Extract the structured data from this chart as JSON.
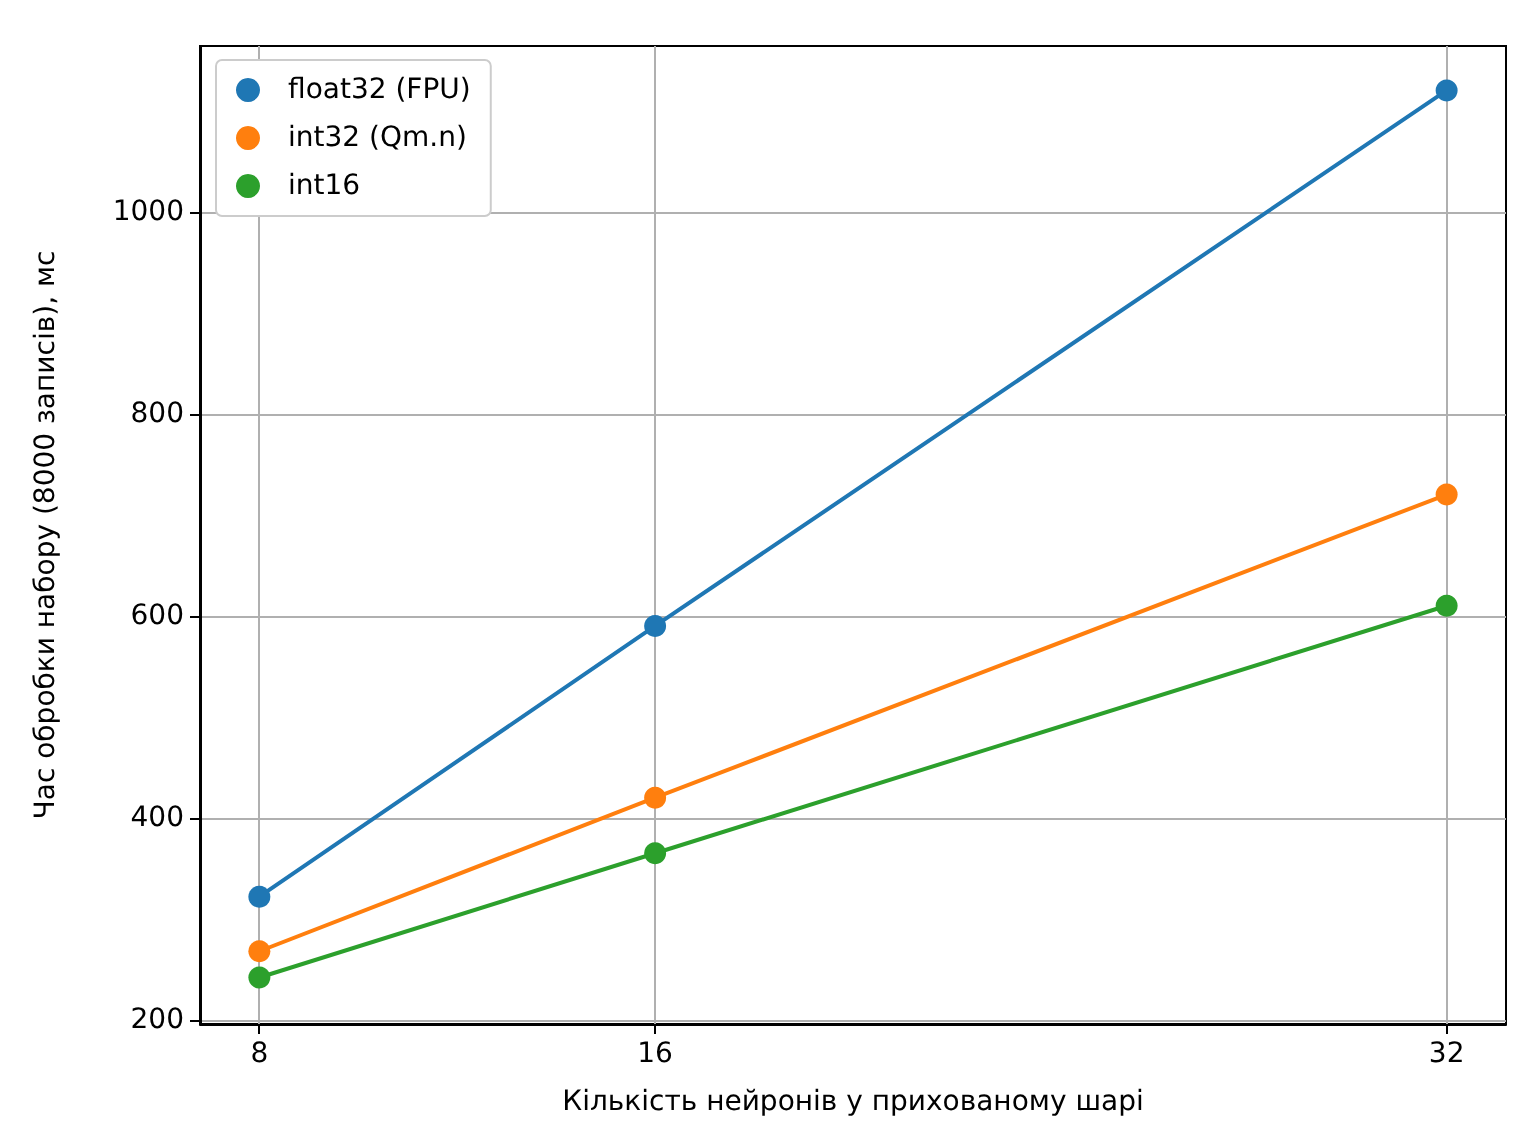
{
  "chart_data": {
    "type": "line",
    "xlabel": "Кількість нейронів у прихованому шарі",
    "ylabel": "Час обробки набору (8000 записів), мс",
    "x": [
      8,
      16,
      32
    ],
    "series": [
      {
        "name": "float32 (FPU)",
        "color": "#1f77b4",
        "values": [
          322,
          590,
          1120
        ]
      },
      {
        "name": "int32 (Qm.n)",
        "color": "#ff7f0e",
        "values": [
          268,
          420,
          720
        ]
      },
      {
        "name": "int16",
        "color": "#2ca02c",
        "values": [
          242,
          365,
          610
        ]
      }
    ],
    "xlim": [
      6.8,
      33.2
    ],
    "xticks": [
      8,
      16,
      32
    ],
    "ylim": [
      196,
      1164
    ],
    "yticks": [
      200,
      400,
      600,
      800,
      1000
    ],
    "grid": true,
    "legend": "top left",
    "marker": "circle",
    "line_style": "solid"
  }
}
